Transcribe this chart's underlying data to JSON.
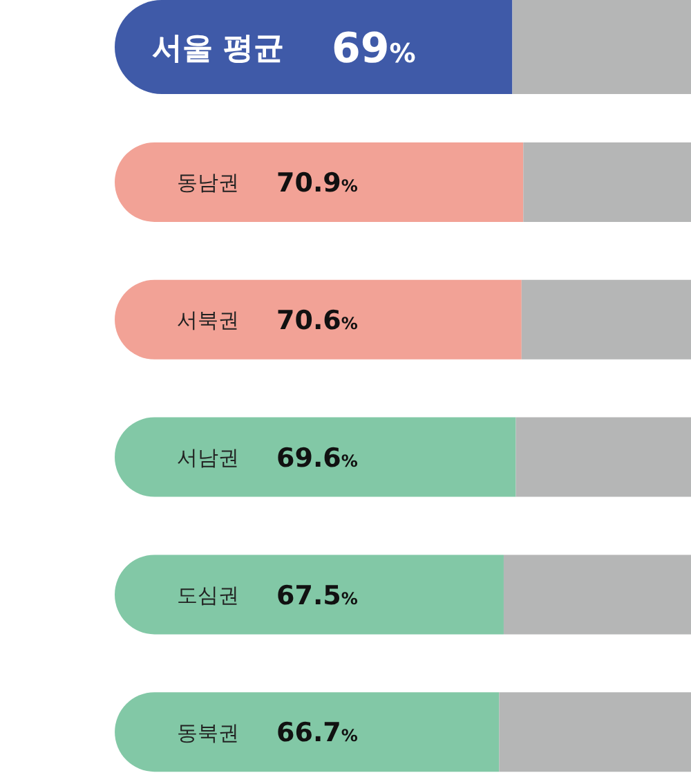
{
  "chart_data": {
    "type": "bar",
    "orientation": "horizontal",
    "stacked": true,
    "xlim": [
      0,
      100
    ],
    "categories": [
      "서울 평균",
      "동남권",
      "서북권",
      "서남권",
      "도심권",
      "동북권"
    ],
    "series": [
      {
        "colors": [
          "#3f5aa8",
          "#f2a296",
          "#f2a296",
          "#82c8a6",
          "#82c8a6",
          "#82c8a6"
        ],
        "values": [
          69,
          70.9,
          70.6,
          69.6,
          67.5,
          66.7
        ],
        "value_labels": [
          "69%",
          "70.9%",
          "70.6%",
          "69.6%",
          "67.5%",
          "66.7%"
        ]
      },
      {
        "color": "#b5b6b6",
        "values": [
          31,
          29.1,
          29.4,
          30.4,
          32.5,
          33.3
        ]
      }
    ]
  }
}
